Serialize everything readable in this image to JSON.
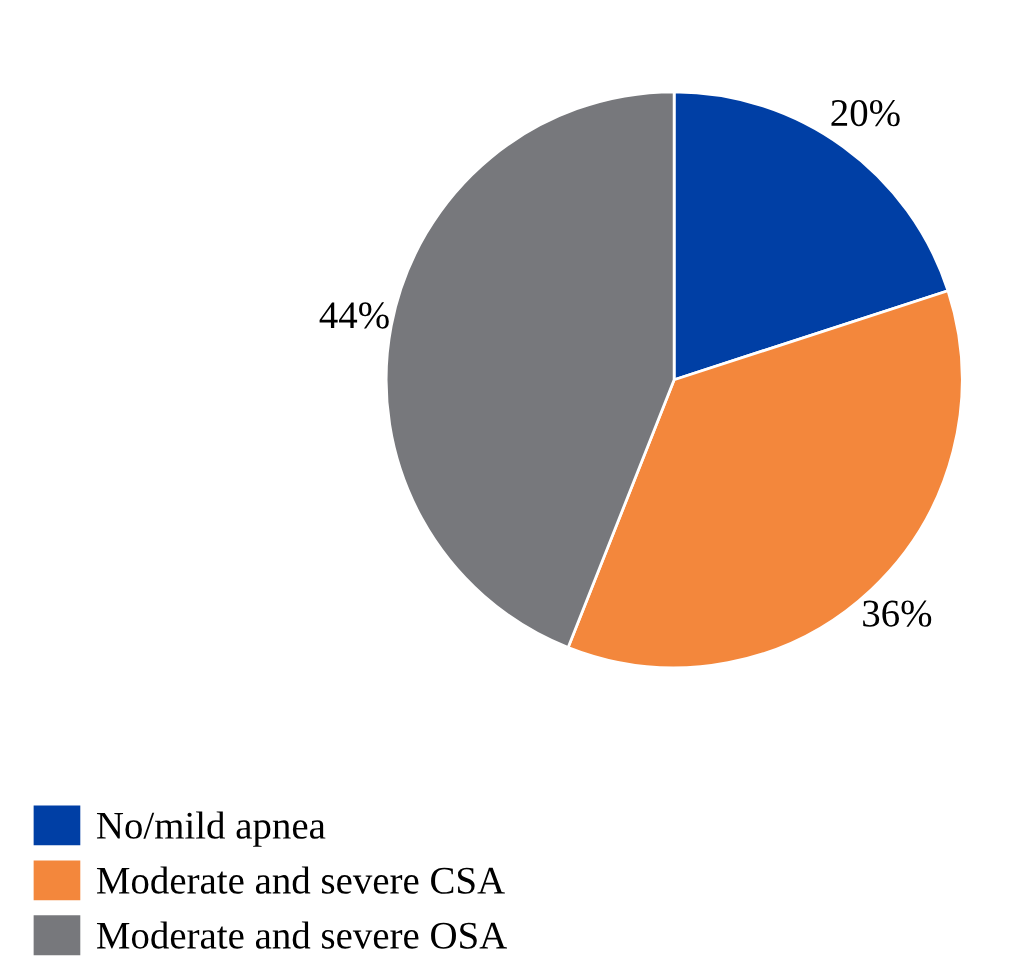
{
  "chart_data": {
    "type": "pie",
    "categories": [
      "No/mild apnea",
      "Moderate and severe CSA",
      "Moderate and severe OSA"
    ],
    "values": [
      20,
      36,
      44
    ],
    "colors": [
      "#003fa5",
      "#f3873c",
      "#77787c"
    ],
    "value_labels": [
      "20%",
      "36%",
      "44%"
    ],
    "legend": "bottom left"
  }
}
